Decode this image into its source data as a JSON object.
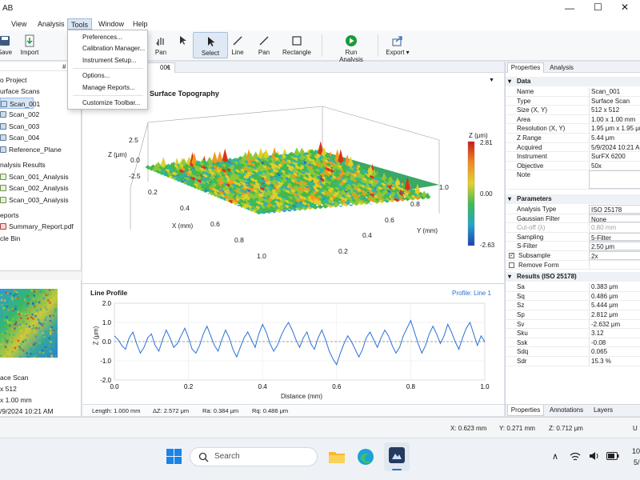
{
  "app": {
    "title": "AB"
  },
  "menu": {
    "items": [
      "View",
      "Analysis",
      "Tools",
      "Window",
      "Help"
    ]
  },
  "tools_menu": {
    "items": [
      "Preferences...",
      "Calibration Manager...",
      "Instrument Setup...",
      "Options...",
      "Manage Reports...",
      "Customize Toolbar..."
    ]
  },
  "toolbar": {
    "save": "Save",
    "import": "Import",
    "pan1": "Pan",
    "select": "Select",
    "line": "Line",
    "pan2": "Pan",
    "rectangle": "Rectangle",
    "run": "Run Analysis",
    "export": "Export"
  },
  "tree": {
    "project": "o Project",
    "surface_scans": "urface Scans",
    "scans": [
      "Scan_001",
      "Scan_002",
      "Scan_003",
      "Scan_004",
      "Reference_Plane"
    ],
    "analysis_results": "nalysis Results",
    "analyses": [
      "Scan_001_Analysis",
      "Scan_002_Analysis",
      "Scan_003_Analysis"
    ],
    "reports": "eports",
    "report_file": "Summary_Report.pdf",
    "bin": "cle Bin",
    "pin": "#"
  },
  "preview": {
    "type": "ace Scan",
    "size": "x 512",
    "area": "x 1.00 mm",
    "date": "/9/2024 10:21 AM"
  },
  "doc_tab": {
    "label": "001",
    "close": "×"
  },
  "topo": {
    "title": "Surface Topography",
    "zlabel": "Z (μm)",
    "z_ticks": [
      "2.5",
      "0.0",
      "-2.5"
    ],
    "xlabel": "X (mm)",
    "x_ticks": [
      "0.2",
      "0.4",
      "0.6",
      "0.8",
      "1.0"
    ],
    "ylabel": "Y (mm)",
    "y_ticks": [
      "0.2",
      "0.4",
      "0.6",
      "0.8",
      "1.0"
    ],
    "colorbar_title": "Z (μm)",
    "colorbar_max": "2.81",
    "colorbar_mid": "0.00",
    "colorbar_min": "-2.63"
  },
  "profile": {
    "title": "Line Profile",
    "link": "Profile: Line 1",
    "ylabel": "Z (μm)",
    "xlabel": "Distance (mm)"
  },
  "chart_data": {
    "type": "line",
    "title": "",
    "xlabel": "Distance (mm)",
    "ylabel": "Z (μm)",
    "xlim": [
      0,
      1
    ],
    "ylim": [
      -2,
      2
    ],
    "x_ticks": [
      "0.0",
      "0.2",
      "0.4",
      "0.6",
      "0.8",
      "1.0"
    ],
    "y_ticks": [
      "2.0",
      "1.0",
      "0.0",
      "-1.0",
      "-2.0"
    ],
    "reference_line": 0,
    "x": [
      0,
      0.01,
      0.02,
      0.03,
      0.04,
      0.05,
      0.06,
      0.07,
      0.08,
      0.09,
      0.1,
      0.11,
      0.12,
      0.13,
      0.14,
      0.15,
      0.16,
      0.17,
      0.18,
      0.19,
      0.2,
      0.21,
      0.22,
      0.23,
      0.24,
      0.25,
      0.26,
      0.27,
      0.28,
      0.29,
      0.3,
      0.31,
      0.32,
      0.33,
      0.34,
      0.35,
      0.36,
      0.37,
      0.38,
      0.39,
      0.4,
      0.41,
      0.42,
      0.43,
      0.44,
      0.45,
      0.46,
      0.47,
      0.48,
      0.49,
      0.5,
      0.51,
      0.52,
      0.53,
      0.54,
      0.55,
      0.56,
      0.57,
      0.58,
      0.59,
      0.6,
      0.61,
      0.62,
      0.63,
      0.64,
      0.65,
      0.66,
      0.67,
      0.68,
      0.69,
      0.7,
      0.71,
      0.72,
      0.73,
      0.74,
      0.75,
      0.76,
      0.77,
      0.78,
      0.79,
      0.8,
      0.81,
      0.82,
      0.83,
      0.84,
      0.85,
      0.86,
      0.87,
      0.88,
      0.89,
      0.9,
      0.91,
      0.92,
      0.93,
      0.94,
      0.95,
      0.96,
      0.97,
      0.98,
      0.99,
      1.0
    ],
    "y": [
      0.3,
      0.1,
      -0.2,
      -0.4,
      0.2,
      0.5,
      -0.1,
      -0.6,
      -0.3,
      0.2,
      0.4,
      -0.2,
      -0.5,
      0.1,
      0.6,
      0.2,
      -0.3,
      -0.1,
      0.3,
      0.7,
      0.2,
      -0.4,
      -0.6,
      -0.2,
      0.4,
      0.8,
      0.3,
      -0.2,
      -0.5,
      0.1,
      0.6,
      0.2,
      -0.4,
      -0.8,
      -0.3,
      0.2,
      0.5,
      0.1,
      -0.3,
      0.4,
      0.9,
      0.5,
      -0.1,
      -0.5,
      -0.2,
      0.3,
      0.7,
      1.0,
      0.6,
      0.1,
      -0.3,
      0.2,
      0.5,
      -0.1,
      -0.4,
      0.2,
      0.6,
      0.1,
      -0.5,
      -0.9,
      -1.2,
      -0.6,
      -0.1,
      0.3,
      0.0,
      -0.4,
      -0.8,
      -0.4,
      0.2,
      0.5,
      0.1,
      -0.3,
      0.2,
      0.6,
      0.3,
      -0.2,
      -0.6,
      -0.3,
      0.3,
      0.7,
      1.1,
      0.5,
      -0.1,
      -0.6,
      -0.2,
      0.4,
      0.8,
      0.4,
      -0.1,
      0.3,
      0.9,
      0.5,
      0.0,
      -0.4,
      0.2,
      0.7,
      1.0,
      0.4,
      -0.2,
      0.3,
      0.0
    ]
  },
  "measure": {
    "length": "Length:  1.000 mm",
    "dz": "ΔZ:  2.572 μm",
    "ra": "Ra:   0.384 μm",
    "rq": "Rq:   0.486 μm"
  },
  "props": {
    "tab_properties": "Properties",
    "tab_analysis": "Analysis",
    "data_header": "Data",
    "data": [
      [
        "Name",
        "Scan_001"
      ],
      [
        "Type",
        "Surface Scan"
      ],
      [
        "Size (X, Y)",
        "512 x 512"
      ],
      [
        "Area",
        "1.00 x 1.00 mm"
      ],
      [
        "Resolution (X, Y)",
        "1.95 μm x 1.95 μm"
      ],
      [
        "Z Range",
        "5.44 μm"
      ],
      [
        "Acquired",
        "5/9/2024 10:21 AM"
      ],
      [
        "Instrument",
        "SurFX 6200"
      ],
      [
        "Objective",
        "50x"
      ],
      [
        "Note",
        ""
      ]
    ],
    "params_header": "Parameters",
    "params": [
      [
        "Analysis Type",
        "ISO 25178"
      ],
      [
        "Gaussian Filter",
        "None"
      ],
      [
        "Cut-off (λ)",
        "0.80 mm"
      ],
      [
        "Sampling",
        "5-Filter"
      ],
      [
        "S-Filter",
        "2.50 μm"
      ],
      [
        "Subsample",
        "2x"
      ],
      [
        "Remove Form",
        ""
      ]
    ],
    "results_header": "Results (ISO 25178)",
    "results": [
      [
        "Sa",
        "0.383 μm"
      ],
      [
        "Sq",
        "0.486 μm"
      ],
      [
        "Sz",
        "5.444 μm"
      ],
      [
        "Sp",
        "2.812 μm"
      ],
      [
        "Sv",
        "-2.632 μm"
      ],
      [
        "Sku",
        "3.12"
      ],
      [
        "Ssk",
        "-0.08"
      ],
      [
        "Sdq",
        "0.065"
      ],
      [
        "Sdr",
        "15.3 %"
      ]
    ],
    "bottom_tabs": [
      "Properties",
      "Annotations",
      "Layers"
    ]
  },
  "status": {
    "x": "X:  0.623 mm",
    "y": "Y:  0.271 mm",
    "z": "Z:  0.712 μm",
    "extra": "U"
  },
  "taskbar": {
    "search": "Search",
    "time": "10",
    "date": "5/"
  },
  "colors": {
    "accent": "#2a6fd6",
    "run": "#1a9b3a"
  }
}
